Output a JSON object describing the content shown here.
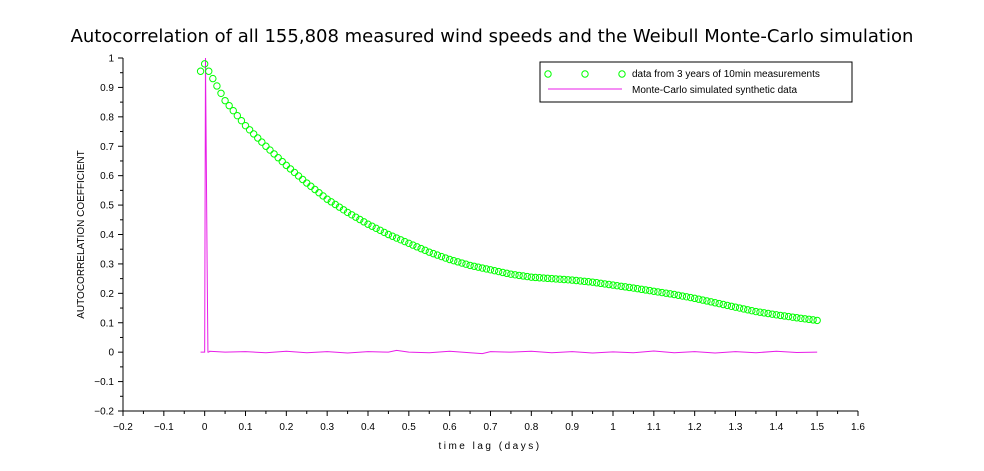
{
  "chart_data": {
    "type": "line",
    "title": "Autocorrelation of all 155,808 measured wind speeds and the Weibull Monte-Carlo simulation",
    "xlabel": "time lag (days)",
    "ylabel": "AUTOCORRELATION COEFFICIENT",
    "xlim": [
      -0.2,
      1.6
    ],
    "ylim": [
      -0.2,
      1
    ],
    "x_ticks": [
      -0.2,
      -0.1,
      0,
      0.1,
      0.2,
      0.3,
      0.4,
      0.5,
      0.6,
      0.7,
      0.8,
      0.9,
      1,
      1.1,
      1.2,
      1.3,
      1.4,
      1.5,
      1.6
    ],
    "x_tick_labels": [
      "−0.2",
      "−0.1",
      "0",
      "0.1",
      "0.2",
      "0.3",
      "0.4",
      "0.5",
      "0.6",
      "0.7",
      "0.8",
      "0.9",
      "1",
      "1.1",
      "1.2",
      "1.3",
      "1.4",
      "1.5",
      "1.6"
    ],
    "y_ticks": [
      -0.2,
      -0.1,
      0,
      0.1,
      0.2,
      0.3,
      0.4,
      0.5,
      0.6,
      0.7,
      0.8,
      0.9,
      1
    ],
    "y_tick_labels": [
      "−0.2",
      "−0.1",
      "0",
      "0.1",
      "0.2",
      "0.3",
      "0.4",
      "0.5",
      "0.6",
      "0.7",
      "0.8",
      "0.9",
      "1"
    ],
    "grid": false,
    "legend_position": "top-right",
    "series": [
      {
        "name": "data from 3 years of 10min measurements",
        "marker": "circle",
        "color": "#00ff00",
        "x": [
          -0.01,
          0,
          0.01,
          0.05,
          0.1,
          0.15,
          0.2,
          0.25,
          0.3,
          0.35,
          0.4,
          0.45,
          0.5,
          0.55,
          0.6,
          0.65,
          0.7,
          0.75,
          0.8,
          0.85,
          0.9,
          0.95,
          1.0,
          1.05,
          1.1,
          1.15,
          1.2,
          1.25,
          1.3,
          1.35,
          1.4,
          1.45,
          1.5
        ],
        "y": [
          0.955,
          0.98,
          0.955,
          0.855,
          0.77,
          0.7,
          0.635,
          0.575,
          0.52,
          0.475,
          0.435,
          0.4,
          0.37,
          0.34,
          0.315,
          0.295,
          0.28,
          0.265,
          0.255,
          0.25,
          0.245,
          0.238,
          0.228,
          0.218,
          0.207,
          0.196,
          0.183,
          0.168,
          0.153,
          0.138,
          0.127,
          0.117,
          0.108
        ]
      },
      {
        "name": "Monte-Carlo simulated synthetic data",
        "marker": "none",
        "color": "#e81ce8",
        "x": [
          -0.01,
          0.0,
          0.002,
          0.004,
          0.006,
          0.008,
          0.01,
          0.012,
          0.05,
          0.1,
          0.15,
          0.2,
          0.25,
          0.3,
          0.35,
          0.4,
          0.45,
          0.47,
          0.5,
          0.55,
          0.6,
          0.65,
          0.68,
          0.7,
          0.75,
          0.8,
          0.85,
          0.9,
          0.95,
          1.0,
          1.05,
          1.1,
          1.15,
          1.2,
          1.25,
          1.3,
          1.35,
          1.4,
          1.45,
          1.5
        ],
        "y": [
          0.0,
          0.0,
          1.0,
          0.65,
          0.3,
          0.0,
          0.0,
          0.003,
          0.0,
          0.002,
          -0.002,
          0.003,
          -0.002,
          0.002,
          -0.003,
          0.002,
          0.0,
          0.006,
          0.0,
          -0.002,
          0.003,
          -0.002,
          -0.005,
          0.002,
          0.0,
          0.003,
          -0.002,
          0.002,
          -0.003,
          0.001,
          -0.002,
          0.004,
          -0.002,
          0.002,
          -0.003,
          0.002,
          -0.002,
          0.003,
          -0.001,
          0.0
        ]
      }
    ]
  }
}
